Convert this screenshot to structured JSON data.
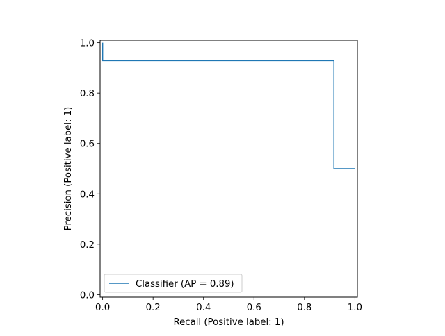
{
  "chart_data": {
    "type": "line",
    "title": "",
    "xlabel": "Recall (Positive label: 1)",
    "ylabel": "Precision (Positive label: 1)",
    "xlim": [
      -0.01,
      1.01
    ],
    "ylim": [
      -0.01,
      1.01
    ],
    "x_ticks": [
      0.0,
      0.2,
      0.4,
      0.6,
      0.8,
      1.0
    ],
    "x_tick_labels": [
      "0.0",
      "0.2",
      "0.4",
      "0.6",
      "0.8",
      "1.0"
    ],
    "y_ticks": [
      0.0,
      0.2,
      0.4,
      0.6,
      0.8,
      1.0
    ],
    "y_tick_labels": [
      "0.0",
      "0.2",
      "0.4",
      "0.6",
      "0.8",
      "1.0"
    ],
    "grid": false,
    "legend_position": "lower-left",
    "series": [
      {
        "name": "Classifier (AP = 0.89)",
        "color": "#1f77b4",
        "drawstyle": "steps-post",
        "x": [
          1.0,
          0.917,
          0.917,
          0.0,
          0.0
        ],
        "y": [
          0.5,
          0.5,
          0.929,
          0.929,
          1.0
        ]
      }
    ]
  }
}
